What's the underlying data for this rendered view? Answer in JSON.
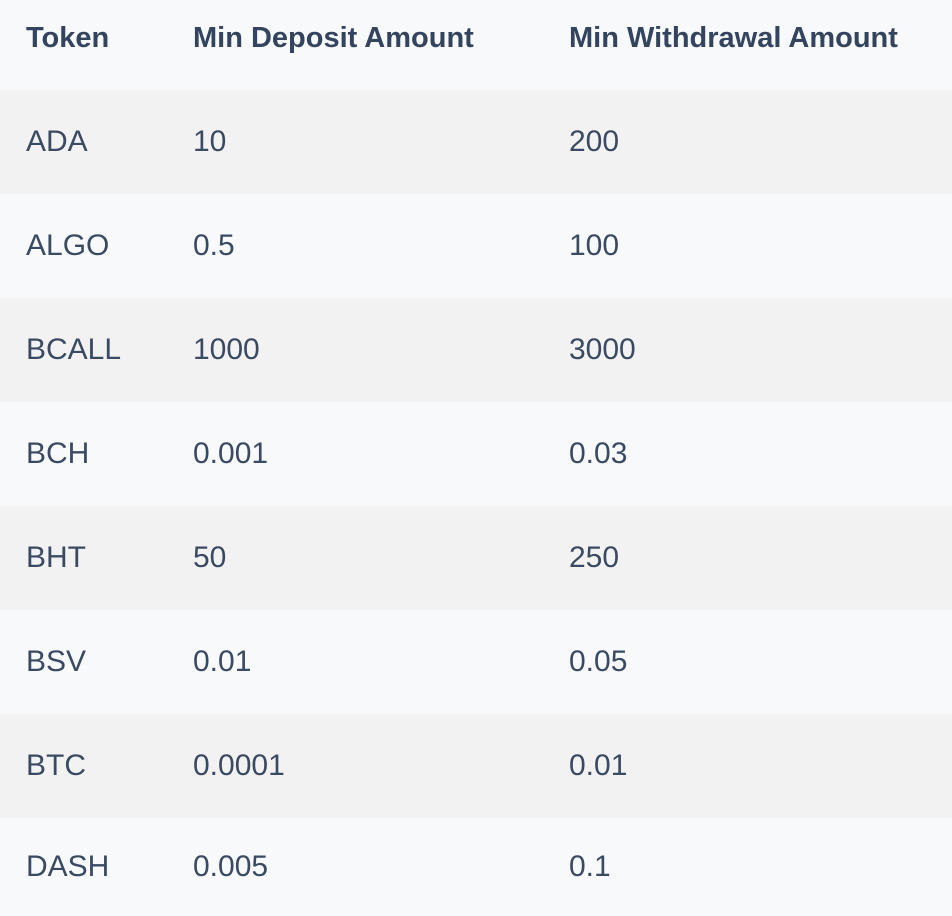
{
  "table": {
    "headers": [
      "Token",
      "Min Deposit Amount",
      "Min Withdrawal Amount"
    ],
    "rows": [
      [
        "ADA",
        "10",
        "200"
      ],
      [
        "ALGO",
        "0.5",
        "100"
      ],
      [
        "BCALL",
        "1000",
        "3000"
      ],
      [
        "BCH",
        "0.001",
        "0.03"
      ],
      [
        "BHT",
        "50",
        "250"
      ],
      [
        "BSV",
        "0.01",
        "0.05"
      ],
      [
        "BTC",
        "0.0001",
        "0.01"
      ],
      [
        "DASH",
        "0.005",
        "0.1"
      ]
    ]
  },
  "colors": {
    "text": "#3b4a63",
    "row_alt": "#f2f2f2",
    "background": "#f7f9fb"
  }
}
